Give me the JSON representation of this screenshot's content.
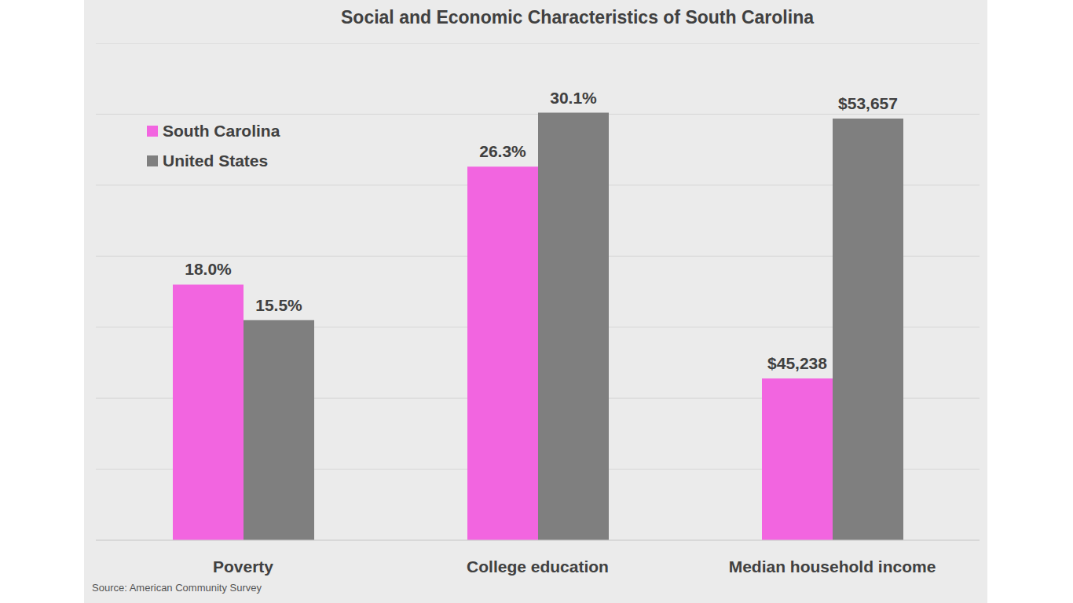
{
  "chart_data": [
    {
      "type": "bar",
      "title": "Social and Economic Characteristics of South Carolina",
      "source": "Source: American Community Survey",
      "categories": [
        "Poverty",
        "College education"
      ],
      "series": [
        {
          "name": "South Carolina",
          "color": "#f265e0",
          "values": [
            18.0,
            26.3
          ],
          "value_labels": [
            "18.0%",
            "26.3%"
          ]
        },
        {
          "name": "United States",
          "color": "#7f7f7f",
          "values": [
            15.5,
            30.1
          ],
          "value_labels": [
            "15.5%",
            "30.1%"
          ]
        }
      ],
      "ylim": [
        0,
        35
      ],
      "yticks": [
        0,
        5,
        10,
        15,
        20,
        25,
        30,
        35
      ],
      "grid": true,
      "legend": "upper left",
      "data_labels": true,
      "tick_labels": "x"
    },
    {
      "type": "bar",
      "categories": [
        "Median household income"
      ],
      "series": [
        {
          "name": "South Carolina",
          "color": "#f265e0",
          "values": [
            45238
          ],
          "value_labels": [
            "$45,238"
          ]
        },
        {
          "name": "United States",
          "color": "#7f7f7f",
          "values": [
            53657
          ],
          "value_labels": [
            "$53,657"
          ]
        }
      ],
      "ylim": [
        40000,
        56100
      ],
      "yticks": [
        40000,
        42300,
        44600,
        46900,
        49200,
        51500,
        53800,
        56100
      ],
      "grid": true,
      "data_labels": true,
      "tick_labels": "x"
    }
  ]
}
